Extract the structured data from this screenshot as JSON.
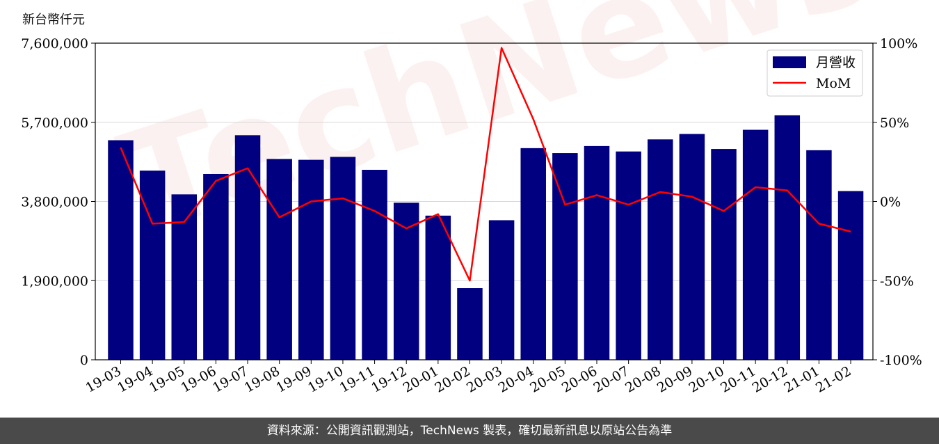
{
  "unit_label": "新台幣仟元",
  "footer": "資料來源：公開資訊觀測站，TechNews 製表，確切最新訊息以原站公告為準",
  "watermark": "TechNews",
  "colors": {
    "bar": "#000080",
    "line": "#ff0000",
    "grid": "#d8d8d8"
  },
  "chart_data": {
    "type": "bar",
    "categories": [
      "19-03",
      "19-04",
      "19-05",
      "19-06",
      "19-07",
      "19-08",
      "19-09",
      "19-10",
      "19-11",
      "19-12",
      "20-01",
      "20-02",
      "20-03",
      "20-04",
      "20-05",
      "20-06",
      "20-07",
      "20-08",
      "20-09",
      "20-10",
      "20-11",
      "20-12",
      "21-01",
      "21-02"
    ],
    "series": [
      {
        "name": "月營收",
        "type": "bar",
        "axis": "left",
        "values": [
          5270000,
          4540000,
          3970000,
          4460000,
          5390000,
          4820000,
          4800000,
          4870000,
          4560000,
          3770000,
          3460000,
          1720000,
          3350000,
          5080000,
          4960000,
          5130000,
          5000000,
          5290000,
          5420000,
          5060000,
          5520000,
          5870000,
          5030000,
          4050000
        ]
      },
      {
        "name": "MoM",
        "type": "line",
        "axis": "right",
        "values": [
          34,
          -14,
          -13,
          13,
          21,
          -10,
          0,
          2,
          -6,
          -17,
          -8,
          -50,
          97,
          52,
          -2,
          4,
          -2,
          6,
          3,
          -6,
          9,
          7,
          -14,
          -19
        ]
      }
    ],
    "y_left": {
      "lim": [
        0,
        7600000
      ],
      "ticks": [
        "0",
        "1,900,000",
        "3,800,000",
        "5,700,000",
        "7,600,000"
      ],
      "tick_values": [
        0,
        1900000,
        3800000,
        5700000,
        7600000
      ]
    },
    "y_right": {
      "lim": [
        -100,
        100
      ],
      "ticks": [
        "-100%",
        "-50%",
        "0%",
        "50%",
        "100%"
      ],
      "tick_values": [
        -100,
        -50,
        0,
        50,
        100
      ]
    },
    "grid": true,
    "legend": {
      "position": "top-right",
      "entries": [
        "月營收",
        "MoM"
      ]
    }
  }
}
